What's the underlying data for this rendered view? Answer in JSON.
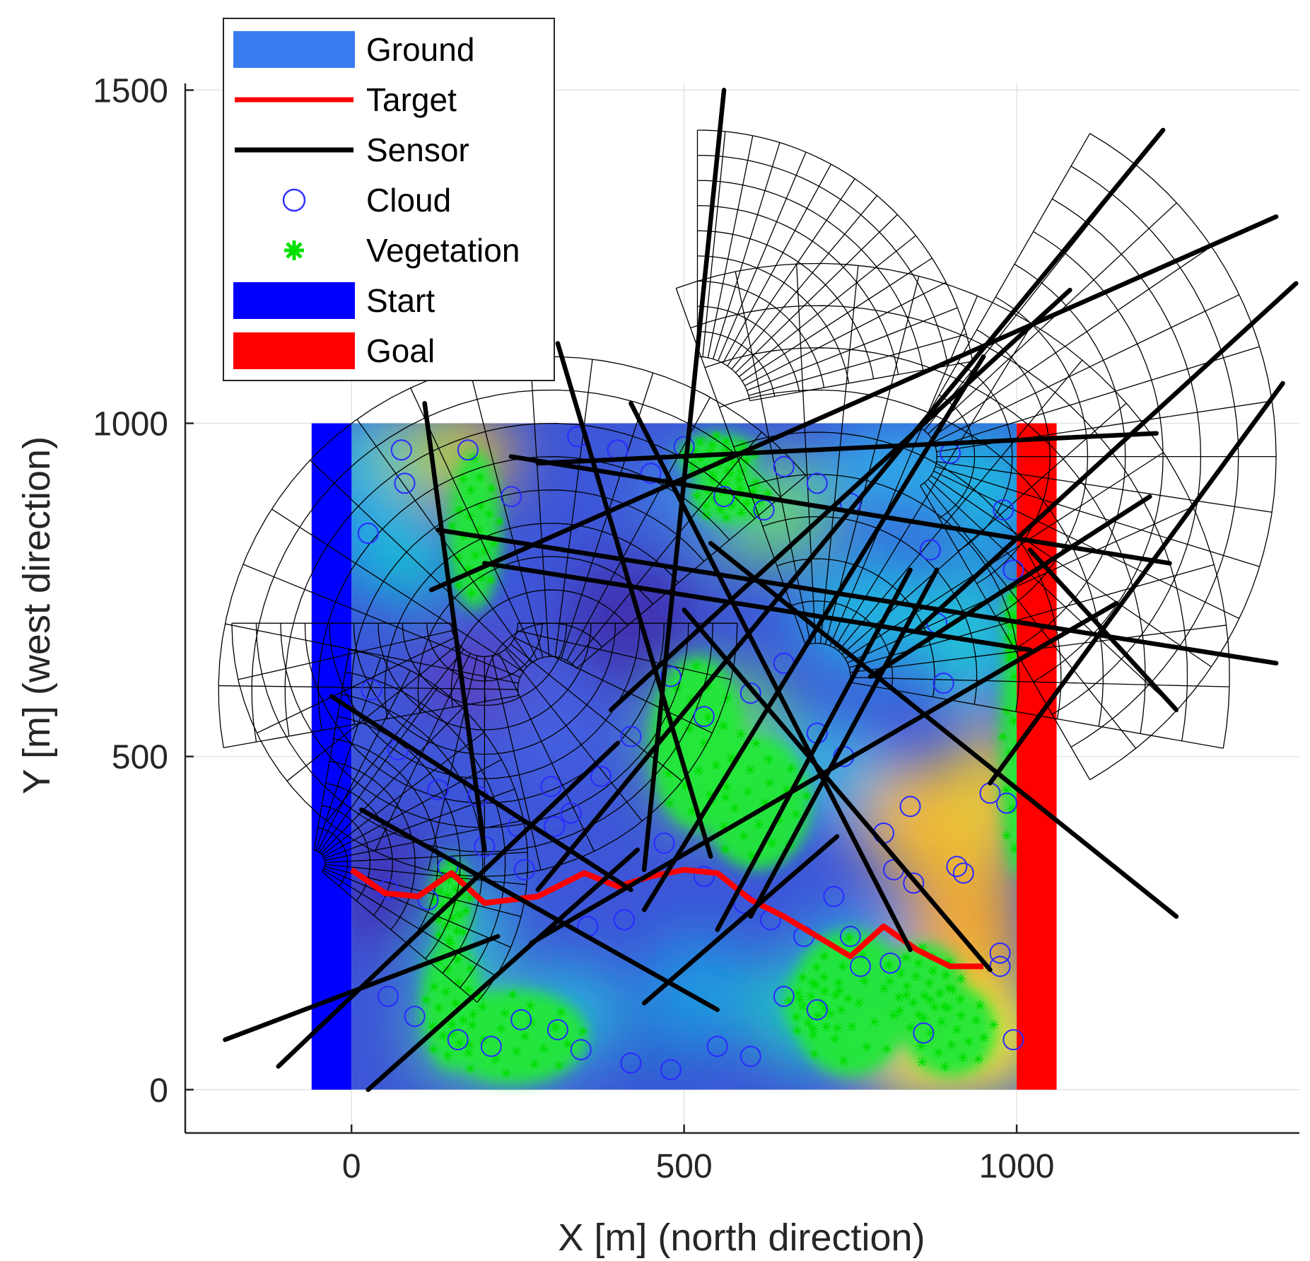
{
  "chart_data": {
    "type": "scatter",
    "xlabel": "X [m] (north direction)",
    "ylabel": "Y [m] (west direction)",
    "xlim": [
      -250,
      1425
    ],
    "ylim": [
      -65,
      1510
    ],
    "xticks": [
      0,
      500,
      1000
    ],
    "yticks": [
      0,
      500,
      1000,
      1500
    ],
    "xtick_labels": [
      "0",
      "500",
      "1000"
    ],
    "ytick_labels": [
      "0",
      "500",
      "1000",
      "1500"
    ],
    "grid": true,
    "legend_position": "top-left",
    "legend": [
      {
        "label": "Ground",
        "kind": "patch",
        "color": "#3a7cf0"
      },
      {
        "label": "Target",
        "kind": "line",
        "color": "#ff0000"
      },
      {
        "label": "Sensor",
        "kind": "line",
        "color": "#000000"
      },
      {
        "label": "Cloud",
        "kind": "circle",
        "color": "#3030ff"
      },
      {
        "label": "Vegetation",
        "kind": "star",
        "color": "#00e000"
      },
      {
        "label": "Start",
        "kind": "patch",
        "color": "#0000ff"
      },
      {
        "label": "Goal",
        "kind": "patch",
        "color": "#ff0000"
      }
    ],
    "ground": {
      "x_range": [
        0,
        1000
      ],
      "y_range": [
        0,
        1000
      ]
    },
    "start_region": {
      "x_range": [
        -60,
        0
      ],
      "y_range": [
        0,
        1000
      ],
      "color": "#0000ff"
    },
    "goal_region": {
      "x_range": [
        1000,
        1060
      ],
      "y_range": [
        0,
        1000
      ],
      "color": "#ff0000"
    },
    "target": {
      "x": [
        0,
        50,
        100,
        150,
        200,
        280,
        300,
        350,
        400,
        450,
        500,
        550,
        600,
        650,
        700,
        750,
        800,
        850,
        900,
        950
      ],
      "y": [
        330,
        295,
        290,
        325,
        280,
        290,
        300,
        325,
        305,
        320,
        330,
        325,
        285,
        260,
        230,
        200,
        245,
        210,
        185,
        185
      ]
    },
    "sensors": [
      {
        "x": [
          -190,
          220
        ],
        "y": [
          75,
          230
        ]
      },
      {
        "x": [
          -110,
          400
        ],
        "y": [
          35,
          520
        ]
      },
      {
        "x": [
          25,
          430
        ],
        "y": [
          0,
          360
        ]
      },
      {
        "x": [
          15,
          550
        ],
        "y": [
          420,
          120
        ]
      },
      {
        "x": [
          110,
          200
        ],
        "y": [
          1030,
          360
        ]
      },
      {
        "x": [
          310,
          540
        ],
        "y": [
          1120,
          350
        ]
      },
      {
        "x": [
          560,
          440
        ],
        "y": [
          1500,
          330
        ]
      },
      {
        "x": [
          280,
          1210
        ],
        "y": [
          940,
          985
        ]
      },
      {
        "x": [
          1220,
          280
        ],
        "y": [
          1440,
          300
        ]
      },
      {
        "x": [
          1080,
          390
        ],
        "y": [
          1200,
          570
        ]
      },
      {
        "x": [
          1390,
          120
        ],
        "y": [
          1310,
          750
        ]
      },
      {
        "x": [
          130,
          1390
        ],
        "y": [
          840,
          640
        ]
      },
      {
        "x": [
          200,
          1020
        ],
        "y": [
          790,
          660
        ]
      },
      {
        "x": [
          540,
          1240
        ],
        "y": [
          820,
          260
        ]
      },
      {
        "x": [
          780,
          1200
        ],
        "y": [
          620,
          890
        ]
      },
      {
        "x": [
          500,
          960
        ],
        "y": [
          720,
          180
        ]
      },
      {
        "x": [
          1150,
          270
        ],
        "y": [
          730,
          220
        ]
      },
      {
        "x": [
          -30,
          420
        ],
        "y": [
          590,
          300
        ]
      },
      {
        "x": [
          440,
          950
        ],
        "y": [
          270,
          1100
        ]
      },
      {
        "x": [
          850,
          1420
        ],
        "y": [
          690,
          1210
        ]
      },
      {
        "x": [
          240,
          1230
        ],
        "y": [
          950,
          790
        ]
      },
      {
        "x": [
          550,
          840
        ],
        "y": [
          240,
          780
        ]
      },
      {
        "x": [
          420,
          840
        ],
        "y": [
          1030,
          210
        ]
      },
      {
        "x": [
          730,
          440
        ],
        "y": [
          380,
          130
        ]
      },
      {
        "x": [
          880,
          600
        ],
        "y": [
          780,
          260
        ]
      },
      {
        "x": [
          1020,
          1240
        ],
        "y": [
          810,
          570
        ]
      },
      {
        "x": [
          960,
          1400
        ],
        "y": [
          460,
          1060
        ]
      }
    ],
    "clouds": {
      "x": [
        25,
        75,
        80,
        175,
        240,
        340,
        400,
        450,
        500,
        560,
        620,
        650,
        700,
        750,
        870,
        900,
        980,
        995,
        30,
        70,
        130,
        190,
        250,
        300,
        330,
        375,
        420,
        480,
        530,
        600,
        650,
        700,
        740,
        800,
        840,
        880,
        890,
        960,
        55,
        115,
        145,
        200,
        260,
        305,
        355,
        410,
        470,
        530,
        590,
        630,
        680,
        725,
        765,
        815,
        845,
        910,
        975,
        985,
        55,
        95,
        160,
        210,
        255,
        310,
        345,
        420,
        480,
        550,
        600,
        650,
        700,
        750,
        810,
        860,
        920,
        975,
        995
      ],
      "y": [
        835,
        960,
        910,
        960,
        890,
        980,
        960,
        925,
        965,
        890,
        870,
        935,
        910,
        880,
        810,
        955,
        870,
        780,
        600,
        510,
        450,
        440,
        395,
        455,
        415,
        470,
        530,
        620,
        560,
        595,
        640,
        535,
        500,
        385,
        425,
        700,
        610,
        445,
        300,
        285,
        335,
        365,
        330,
        395,
        245,
        255,
        370,
        320,
        280,
        255,
        230,
        290,
        185,
        330,
        310,
        335,
        205,
        430,
        140,
        110,
        75,
        65,
        105,
        90,
        60,
        40,
        30,
        65,
        50,
        140,
        120,
        230,
        190,
        85,
        325,
        185,
        75
      ]
    },
    "mesh_sectors": [
      {
        "cx": -60,
        "cy": 340,
        "angles_deg": [
          -40,
          80
        ],
        "radii": [
          20,
          325
        ]
      },
      {
        "cx": 700,
        "cy": 620,
        "angles_deg": [
          -10,
          110
        ],
        "radii": [
          50,
          620
        ]
      },
      {
        "cx": 300,
        "cy": 600,
        "angles_deg": [
          40,
          190
        ],
        "radii": [
          50,
          500
        ]
      },
      {
        "cx": 200,
        "cy": 700,
        "angles_deg": [
          180,
          360
        ],
        "radii": [
          50,
          380
        ]
      },
      {
        "cx": 830,
        "cy": 950,
        "angles_deg": [
          -60,
          60
        ],
        "radii": [
          50,
          560
        ]
      },
      {
        "cx": 520,
        "cy": 1020,
        "angles_deg": [
          10,
          90
        ],
        "radii": [
          80,
          420
        ]
      }
    ]
  }
}
